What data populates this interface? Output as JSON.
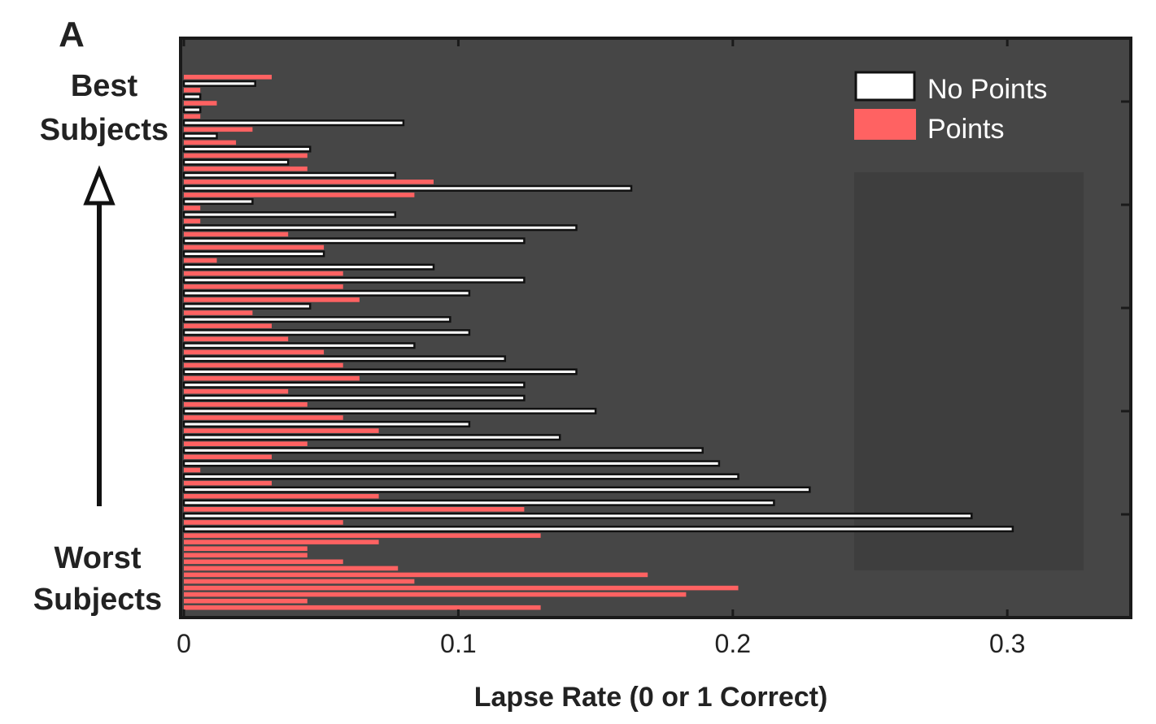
{
  "colors": {
    "background": "#ffffff",
    "plot_background": "#464646",
    "frame": "#1a1a1a",
    "no_points_fill": "#ffffff",
    "points_fill": "#ff6262",
    "legend_shadow": "#3e3e3e"
  },
  "labels": {
    "panel": "A",
    "best_line1": "Best",
    "best_line2": "Subjects",
    "worst_line1": "Worst",
    "worst_line2": "Subjects"
  },
  "chart_data": {
    "type": "bar",
    "orientation": "horizontal",
    "xlabel": "Lapse Rate (0 or 1 Correct)",
    "xlim": [
      0,
      0.345
    ],
    "xticks": [
      0,
      0.1,
      0.2,
      0.3
    ],
    "xtick_labels": [
      "0",
      "0.1",
      "0.2",
      "0.3"
    ],
    "legend": {
      "position": "top-right",
      "entries": [
        {
          "name": "No Points",
          "color": "#ffffff"
        },
        {
          "name": "Points",
          "color": "#ff6262"
        }
      ]
    },
    "grid": false,
    "row_order": "top (best subjects) to bottom (worst subjects)",
    "series": [
      {
        "name": "No Points",
        "values": [
          0.026,
          0.006,
          0.006,
          0.08,
          0.012,
          0.046,
          0.038,
          0.077,
          0.163,
          0.025,
          0.077,
          0.143,
          0.124,
          0.051,
          0.091,
          0.124,
          0.104,
          0.046,
          0.097,
          0.104,
          0.084,
          0.117,
          0.143,
          0.124,
          0.124,
          0.15,
          0.104,
          0.137,
          0.189,
          0.195,
          0.202,
          0.228,
          0.215,
          0.287,
          0.302
        ]
      },
      {
        "name": "Points",
        "values": [
          0.032,
          0.006,
          0.012,
          0.006,
          0.025,
          0.019,
          0.045,
          0.045,
          0.091,
          0.084,
          0.006,
          0.006,
          0.038,
          0.051,
          0.012,
          0.058,
          0.058,
          0.064,
          0.025,
          0.032,
          0.038,
          0.051,
          0.058,
          0.064,
          0.038,
          0.045,
          0.058,
          0.071,
          0.045,
          0.032,
          0.006,
          0.032,
          0.071,
          0.124,
          0.058,
          0.13,
          0.071,
          0.045,
          0.045,
          0.058,
          0.078,
          0.169,
          0.084,
          0.202,
          0.183,
          0.045,
          0.13
        ]
      }
    ]
  }
}
